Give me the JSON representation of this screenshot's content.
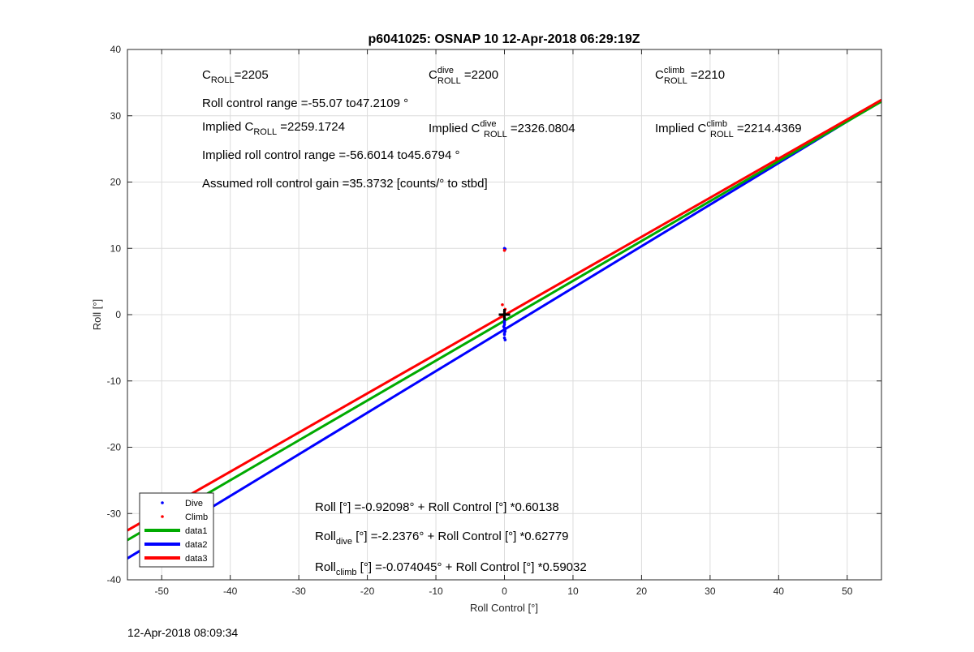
{
  "chart_data": {
    "type": "scatter",
    "title": "p6041025: OSNAP 10 12-Apr-2018 06:29:19Z",
    "xlabel": "Roll Control [°]",
    "ylabel": "Roll [°]",
    "xlim": [
      -55,
      55
    ],
    "ylim": [
      -40,
      40
    ],
    "xticks": [
      -50,
      -40,
      -30,
      -20,
      -10,
      0,
      10,
      20,
      30,
      40,
      50
    ],
    "yticks": [
      -40,
      -30,
      -20,
      -10,
      0,
      10,
      20,
      30,
      40
    ],
    "grid": true,
    "legend_position": "bottom-left",
    "colors": {
      "dive": "#0000ff",
      "climb": "#ff0000",
      "data1": "#00aa00",
      "data2": "#0000ff",
      "data3": "#ff0000"
    },
    "series": [
      {
        "name": "Dive",
        "kind": "points",
        "color": "#0000ff",
        "points": [
          [
            0,
            10
          ],
          [
            0.1,
            9.9
          ],
          [
            0,
            -1
          ],
          [
            0,
            -1.5
          ],
          [
            0,
            -2
          ],
          [
            0.1,
            -2.5
          ],
          [
            0,
            -3
          ],
          [
            0,
            -3.5
          ],
          [
            0.1,
            -3.8
          ],
          [
            0,
            -1.2
          ],
          [
            0.1,
            -2.2
          ],
          [
            0,
            -2.8
          ],
          [
            -0.1,
            -1.8
          ],
          [
            0,
            -0.5
          ]
        ]
      },
      {
        "name": "Climb",
        "kind": "points",
        "color": "#ff0000",
        "points": [
          [
            0,
            9.7
          ],
          [
            -0.3,
            1.5
          ],
          [
            0,
            0.5
          ],
          [
            0,
            0
          ],
          [
            0,
            -0.5
          ],
          [
            0.1,
            0.8
          ],
          [
            -0.1,
            -0.2
          ],
          [
            0,
            0.2
          ],
          [
            39.7,
            23.6
          ]
        ]
      },
      {
        "name": "data1",
        "kind": "line",
        "color": "#00aa00",
        "intercept": -0.92098,
        "slope": 0.60138
      },
      {
        "name": "data2",
        "kind": "line",
        "color": "#0000ff",
        "intercept": -2.2376,
        "slope": 0.62779
      },
      {
        "name": "data3",
        "kind": "line",
        "color": "#ff0000",
        "intercept": -0.074045,
        "slope": 0.59032
      }
    ],
    "marker": {
      "x": 0,
      "y": 0,
      "symbol": "+"
    },
    "annotations": {
      "c_roll": {
        "main": "C",
        "sub": "ROLL",
        "rest": "=2205"
      },
      "c_roll_dive": {
        "main": "C",
        "sup": "dive",
        "sub": "ROLL",
        "rest": " =2200"
      },
      "c_roll_climb": {
        "main": "C",
        "sup": "climb",
        "sub": "ROLL",
        "rest": " =2210"
      },
      "range": "Roll control range =-55.07 to47.2109 °",
      "implied_c_roll": {
        "main": "Implied C",
        "sub": "ROLL",
        "rest": " =2259.1724"
      },
      "implied_c_roll_dive": {
        "main": "Implied C",
        "sup": "dive",
        "sub": "ROLL",
        "rest": " =2326.0804"
      },
      "implied_c_roll_climb": {
        "main": "Implied C",
        "sup": "climb",
        "sub": "ROLL",
        "rest": " =2214.4369"
      },
      "implied_range": "Implied roll control range =-56.6014 to45.6794 °",
      "gain": "Assumed roll control gain =35.3732 [counts/° to stbd]",
      "fit_all": {
        "main": "Roll [°] =-0.92098° + Roll Control [°] *0.60138"
      },
      "fit_dive": {
        "main": "Roll",
        "sub": "dive",
        "rest": " [°] =-2.2376° + Roll Control [°] *0.62779"
      },
      "fit_climb": {
        "main": "Roll",
        "sub": "climb",
        "rest": " [°] =-0.074045° + Roll Control [°] *0.59032"
      }
    }
  },
  "footer": {
    "timestamp": "12-Apr-2018 08:09:34"
  }
}
